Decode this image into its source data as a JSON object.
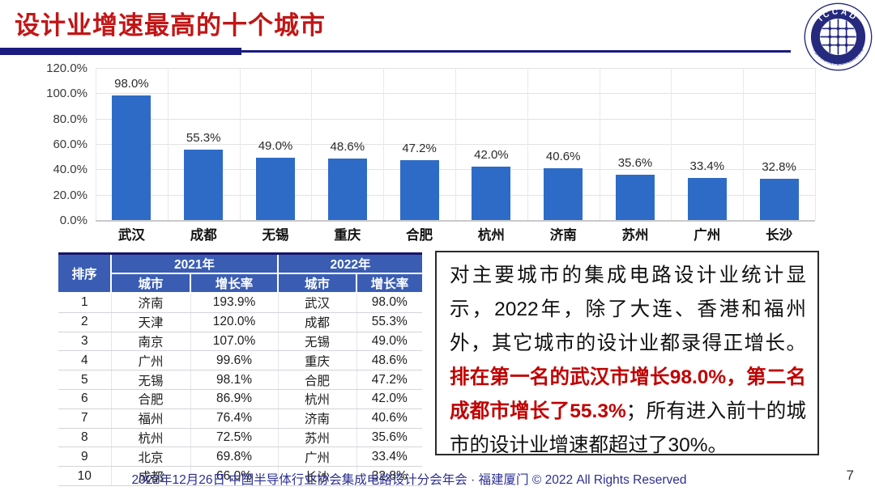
{
  "header": {
    "title": "设计业增速最高的十个城市",
    "logo": {
      "top_text": "ICCAD",
      "ring_text": "中国半导体行业协会集成电路设计分会"
    }
  },
  "chart_data": {
    "type": "bar",
    "categories": [
      "武汉",
      "成都",
      "无锡",
      "重庆",
      "合肥",
      "杭州",
      "济南",
      "苏州",
      "广州",
      "长沙"
    ],
    "values": [
      98.0,
      55.3,
      49.0,
      48.6,
      47.2,
      42.0,
      40.6,
      35.6,
      33.4,
      32.8
    ],
    "value_labels": [
      "98.0%",
      "55.3%",
      "49.0%",
      "48.6%",
      "47.2%",
      "42.0%",
      "40.6%",
      "35.6%",
      "33.4%",
      "32.8%"
    ],
    "title": "",
    "xlabel": "",
    "ylabel": "",
    "ylim": [
      0,
      120
    ],
    "ytick_step": 20,
    "ytick_labels": [
      "0.0%",
      "20.0%",
      "40.0%",
      "60.0%",
      "80.0%",
      "100.0%",
      "120.0%"
    ],
    "grid": true,
    "legend": "none",
    "bar_color": "#2e6bc6"
  },
  "table": {
    "rank_header": "排序",
    "group_headers": [
      "2021年",
      "2022年"
    ],
    "sub_headers": [
      "城市",
      "增长率",
      "城市",
      "增长率"
    ],
    "rows": [
      [
        "1",
        "济南",
        "193.9%",
        "武汉",
        "98.0%"
      ],
      [
        "2",
        "天津",
        "120.0%",
        "成都",
        "55.3%"
      ],
      [
        "3",
        "南京",
        "107.0%",
        "无锡",
        "49.0%"
      ],
      [
        "4",
        "广州",
        "99.6%",
        "重庆",
        "48.6%"
      ],
      [
        "5",
        "无锡",
        "98.1%",
        "合肥",
        "47.2%"
      ],
      [
        "6",
        "合肥",
        "86.9%",
        "杭州",
        "42.0%"
      ],
      [
        "7",
        "福州",
        "76.4%",
        "济南",
        "40.6%"
      ],
      [
        "8",
        "杭州",
        "72.5%",
        "苏州",
        "35.6%"
      ],
      [
        "9",
        "北京",
        "69.8%",
        "广州",
        "33.4%"
      ],
      [
        "10",
        "成都",
        "66.0%",
        "长沙",
        "32.8%"
      ]
    ]
  },
  "callout": {
    "part1": "对主要城市的集成电路设计业统计显示，2022年，除了大连、香港和福州外，其它城市的设计业都录得正增长。",
    "highlight": "排在第一名的武汉市增长98.0%，第二名成都市增长了55.3%",
    "part2": "；所有进入前十的城市的设计业增速都超过了30%。"
  },
  "footer": {
    "text": "2022年12月26日 中国半导体行业协会集成电路设计分会年会 · 福建厦门 © 2022 All Rights Reserved",
    "page_number": "7"
  },
  "colors": {
    "title_red": "#c21616",
    "navy": "#1b1b80",
    "bar_blue": "#2e6bc6",
    "table_header_blue": "#3a5db3",
    "highlight_red": "#c00000",
    "footer_navy": "#2b2f92"
  }
}
